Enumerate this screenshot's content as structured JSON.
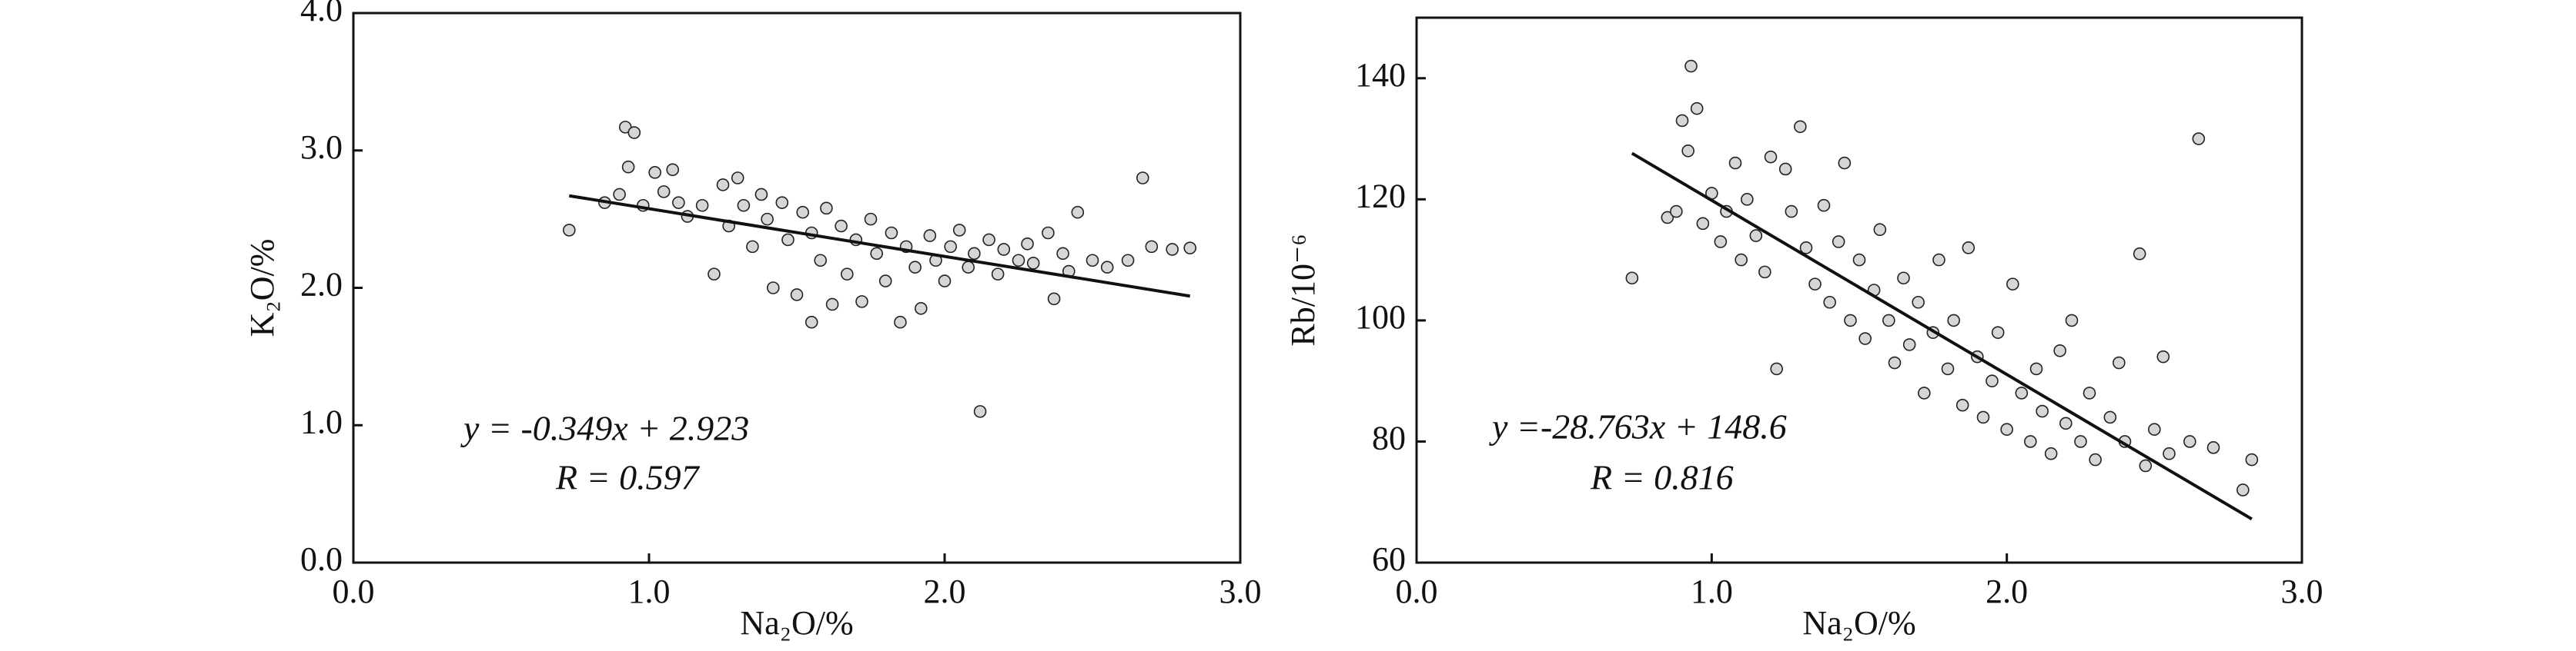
{
  "chart_data": [
    {
      "type": "scatter",
      "x_label": "Na₂O/%",
      "y_label": "K₂O/%",
      "annotations": [
        "y = -0.349x + 2.923",
        "R = 0.597"
      ],
      "xlim": [
        0,
        3
      ],
      "ylim": [
        0,
        4
      ],
      "xticks": [
        {
          "value": 0,
          "label": "0.0"
        },
        {
          "value": 1,
          "label": "1.0"
        },
        {
          "value": 2,
          "label": "2.0"
        },
        {
          "value": 3,
          "label": "3.0"
        }
      ],
      "yticks": [
        {
          "value": 0,
          "label": "0.0"
        },
        {
          "value": 1,
          "label": "1.0"
        },
        {
          "value": 2,
          "label": "2.0"
        },
        {
          "value": 3,
          "label": "3.0"
        },
        {
          "value": 4,
          "label": "4.0"
        }
      ],
      "color": "#d6d6d6",
      "x": [
        0.73,
        0.85,
        0.9,
        0.92,
        0.95,
        0.93,
        0.98,
        1.02,
        1.05,
        1.08,
        1.1,
        1.13,
        1.18,
        1.22,
        1.25,
        1.27,
        1.3,
        1.32,
        1.35,
        1.38,
        1.4,
        1.42,
        1.45,
        1.47,
        1.5,
        1.52,
        1.55,
        1.55,
        1.58,
        1.6,
        1.62,
        1.65,
        1.67,
        1.7,
        1.72,
        1.75,
        1.77,
        1.8,
        1.82,
        1.85,
        1.87,
        1.9,
        1.92,
        1.95,
        1.97,
        2.0,
        2.02,
        2.05,
        2.08,
        2.1,
        2.12,
        2.15,
        2.18,
        2.2,
        2.25,
        2.28,
        2.3,
        2.35,
        2.37,
        2.4,
        2.42,
        2.45,
        2.5,
        2.55,
        2.62,
        2.67,
        2.7,
        2.77,
        2.83
      ],
      "values": [
        2.42,
        2.62,
        2.68,
        3.17,
        3.13,
        2.88,
        2.6,
        2.84,
        2.7,
        2.86,
        2.62,
        2.52,
        2.6,
        2.1,
        2.75,
        2.45,
        2.8,
        2.6,
        2.3,
        2.68,
        2.5,
        2.0,
        2.62,
        2.35,
        1.95,
        2.55,
        2.4,
        1.75,
        2.2,
        2.58,
        1.88,
        2.45,
        2.1,
        2.35,
        1.9,
        2.5,
        2.25,
        2.05,
        2.4,
        1.75,
        2.3,
        2.15,
        1.85,
        2.38,
        2.2,
        2.05,
        2.3,
        2.42,
        2.15,
        2.25,
        1.1,
        2.35,
        2.1,
        2.28,
        2.2,
        2.32,
        2.18,
        2.4,
        1.92,
        2.25,
        2.12,
        2.55,
        2.2,
        2.15,
        2.2,
        2.8,
        2.3,
        2.28,
        2.29
      ],
      "trend_line": {
        "color": "#111111",
        "x": [
          0.73,
          2.83
        ],
        "values": [
          2.67,
          1.94
        ]
      }
    },
    {
      "type": "scatter",
      "x_label": "Na₂O/%",
      "y_label": "Rb/10⁻⁶",
      "annotations": [
        "y =-28.763x + 148.6",
        "R = 0.816"
      ],
      "xlim": [
        0,
        3
      ],
      "ylim": [
        60,
        150
      ],
      "xticks": [
        {
          "value": 0,
          "label": "0.0"
        },
        {
          "value": 1,
          "label": "1.0"
        },
        {
          "value": 2,
          "label": "2.0"
        },
        {
          "value": 3,
          "label": "3.0"
        }
      ],
      "yticks": [
        60,
        80,
        100,
        120,
        140
      ],
      "color": "#d6d6d6",
      "x": [
        0.73,
        0.85,
        0.88,
        0.9,
        0.93,
        0.95,
        0.92,
        0.97,
        1.0,
        1.03,
        1.05,
        1.08,
        1.1,
        1.12,
        1.15,
        1.18,
        1.2,
        1.22,
        1.25,
        1.27,
        1.3,
        1.32,
        1.35,
        1.38,
        1.4,
        1.43,
        1.45,
        1.47,
        1.5,
        1.52,
        1.55,
        1.57,
        1.6,
        1.62,
        1.65,
        1.67,
        1.7,
        1.72,
        1.75,
        1.77,
        1.8,
        1.82,
        1.85,
        1.87,
        1.9,
        1.92,
        1.95,
        1.97,
        2.0,
        2.02,
        2.05,
        2.08,
        2.1,
        2.12,
        2.15,
        2.18,
        2.2,
        2.22,
        2.25,
        2.28,
        2.3,
        2.35,
        2.38,
        2.4,
        2.45,
        2.47,
        2.5,
        2.53,
        2.55,
        2.62,
        2.65,
        2.7,
        2.8,
        2.83
      ],
      "values": [
        107,
        117,
        118,
        133,
        142,
        135,
        128,
        116,
        121,
        113,
        118,
        126,
        110,
        120,
        114,
        108,
        127,
        92,
        125,
        118,
        132,
        112,
        106,
        119,
        103,
        113,
        126,
        100,
        110,
        97,
        105,
        115,
        100,
        93,
        107,
        96,
        103,
        88,
        98,
        110,
        92,
        100,
        86,
        112,
        94,
        84,
        90,
        98,
        82,
        106,
        88,
        80,
        92,
        85,
        78,
        95,
        83,
        100,
        80,
        88,
        77,
        84,
        93,
        80,
        111,
        76,
        82,
        94,
        78,
        80,
        130,
        79,
        72,
        77
      ],
      "trend_line": {
        "color": "#111111",
        "x": [
          0.73,
          2.83
        ],
        "values": [
          127.6,
          67.2
        ]
      }
    }
  ]
}
